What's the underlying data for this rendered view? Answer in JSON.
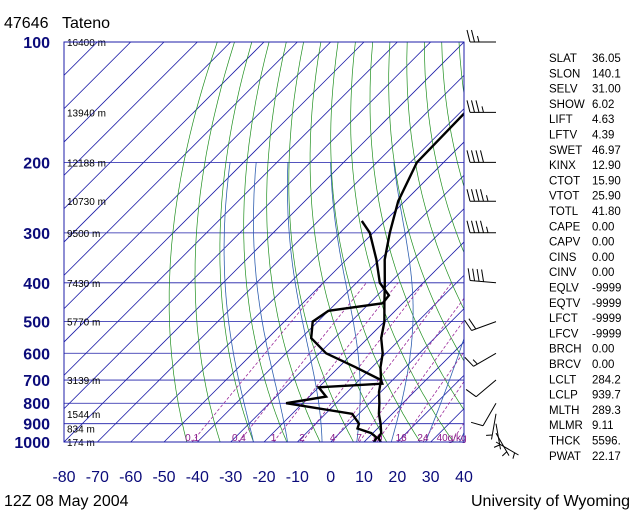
{
  "header": {
    "station_id": "47646",
    "station_name": "Tateno"
  },
  "footer": {
    "time": "12Z 08 May 2004",
    "source": "University of Wyoming"
  },
  "chart_data": {
    "type": "skew-t",
    "y_axis": {
      "scale": "log",
      "ticks": [
        100,
        200,
        300,
        400,
        500,
        600,
        700,
        800,
        900,
        1000
      ],
      "ylim": [
        1000,
        100
      ]
    },
    "x_axis": {
      "ticks": [
        -80,
        -70,
        -60,
        -50,
        -40,
        -30,
        -20,
        -10,
        0,
        10,
        20,
        30,
        40
      ],
      "xlim": [
        -80,
        40
      ]
    },
    "heights": [
      {
        "p": 100,
        "label": "16400 m"
      },
      {
        "p": 150,
        "label": "13940 m"
      },
      {
        "p": 200,
        "label": "12188 m"
      },
      {
        "p": 250,
        "label": "10730 m"
      },
      {
        "p": 300,
        "label": "9500 m"
      },
      {
        "p": 400,
        "label": "7430 m"
      },
      {
        "p": 500,
        "label": "5770 m"
      },
      {
        "p": 700,
        "label": "3139 m"
      },
      {
        "p": 850,
        "label": "1544 m"
      },
      {
        "p": 925,
        "label": "834 m"
      },
      {
        "p": 1000,
        "label": "174 m"
      }
    ],
    "mixing_ratio_labels": [
      "0.1",
      "0.4",
      "1",
      "2",
      "4",
      "7",
      "10",
      "16",
      "24",
      "40g/kg"
    ],
    "mixing_ratio_values": [
      0.1,
      0.4,
      1,
      2,
      4,
      7,
      10,
      16,
      24,
      40
    ],
    "temperature": [
      [
        1000,
        15.0
      ],
      [
        975,
        13.0
      ],
      [
        950,
        12.5
      ],
      [
        925,
        11.0
      ],
      [
        900,
        9.5
      ],
      [
        850,
        6.0
      ],
      [
        800,
        3.0
      ],
      [
        750,
        -0.5
      ],
      [
        700,
        -3.5
      ],
      [
        650,
        -7.5
      ],
      [
        600,
        -11.0
      ],
      [
        550,
        -16.0
      ],
      [
        500,
        -20.0
      ],
      [
        450,
        -25.5
      ],
      [
        400,
        -31.5
      ],
      [
        350,
        -38.5
      ],
      [
        300,
        -45.0
      ],
      [
        250,
        -52.0
      ],
      [
        200,
        -58.0
      ],
      [
        150,
        -58.5
      ],
      [
        100,
        -59.0
      ]
    ],
    "dewpoint": [
      [
        1000,
        13.0
      ],
      [
        975,
        12.5
      ],
      [
        950,
        9.5
      ],
      [
        925,
        4.0
      ],
      [
        900,
        3.0
      ],
      [
        850,
        -2.0
      ],
      [
        800,
        -25.0
      ],
      [
        770,
        -15.0
      ],
      [
        730,
        -20.0
      ],
      [
        715,
        -2.0
      ],
      [
        700,
        -3.5
      ],
      [
        650,
        -15.0
      ],
      [
        600,
        -28.0
      ],
      [
        550,
        -37.0
      ],
      [
        500,
        -41.5
      ],
      [
        470,
        -40.0
      ],
      [
        450,
        -26.0
      ],
      [
        430,
        -26.5
      ],
      [
        400,
        -33.0
      ],
      [
        350,
        -41.0
      ],
      [
        300,
        -51.0
      ],
      [
        280,
        -57.0
      ]
    ],
    "winds": [
      {
        "p": 100,
        "dir": 270,
        "kt": 25
      },
      {
        "p": 150,
        "dir": 270,
        "kt": 35
      },
      {
        "p": 200,
        "dir": 270,
        "kt": 40
      },
      {
        "p": 250,
        "dir": 270,
        "kt": 45
      },
      {
        "p": 300,
        "dir": 270,
        "kt": 45
      },
      {
        "p": 400,
        "dir": 275,
        "kt": 40
      },
      {
        "p": 500,
        "dir": 250,
        "kt": 20
      },
      {
        "p": 600,
        "dir": 240,
        "kt": 15
      },
      {
        "p": 700,
        "dir": 230,
        "kt": 10
      },
      {
        "p": 800,
        "dir": 210,
        "kt": 10
      },
      {
        "p": 850,
        "dir": 190,
        "kt": 5
      },
      {
        "p": 900,
        "dir": 170,
        "kt": 5
      },
      {
        "p": 950,
        "dir": 150,
        "kt": 5
      },
      {
        "p": 1000,
        "dir": 120,
        "kt": 5
      }
    ]
  },
  "indices": [
    {
      "name": "SLAT",
      "value": "36.05"
    },
    {
      "name": "SLON",
      "value": "140.1"
    },
    {
      "name": "SELV",
      "value": "31.00"
    },
    {
      "name": "SHOW",
      "value": "6.02"
    },
    {
      "name": "LIFT",
      "value": "4.63"
    },
    {
      "name": "LFTV",
      "value": "4.39"
    },
    {
      "name": "SWET",
      "value": "46.97"
    },
    {
      "name": "KINX",
      "value": "12.90"
    },
    {
      "name": "CTOT",
      "value": "15.90"
    },
    {
      "name": "VTOT",
      "value": "25.90"
    },
    {
      "name": "TOTL",
      "value": "41.80"
    },
    {
      "name": "CAPE",
      "value": "0.00"
    },
    {
      "name": "CAPV",
      "value": "0.00"
    },
    {
      "name": "CINS",
      "value": "0.00"
    },
    {
      "name": "CINV",
      "value": "0.00"
    },
    {
      "name": "EQLV",
      "value": "-9999"
    },
    {
      "name": "EQTV",
      "value": "-9999"
    },
    {
      "name": "LFCT",
      "value": "-9999"
    },
    {
      "name": "LFCV",
      "value": "-9999"
    },
    {
      "name": "BRCH",
      "value": "0.00"
    },
    {
      "name": "BRCV",
      "value": "0.00"
    },
    {
      "name": "LCLT",
      "value": "284.2"
    },
    {
      "name": "LCLP",
      "value": "939.7"
    },
    {
      "name": "MLTH",
      "value": "289.3"
    },
    {
      "name": "MLMR",
      "value": "9.11"
    },
    {
      "name": "THCK",
      "value": "5596."
    },
    {
      "name": "PWAT",
      "value": "22.17"
    }
  ],
  "colors": {
    "isobars": "#1c1ca8",
    "isotherms": "#1c1ca8",
    "dry_adiabats": "#1f8f1f",
    "moist_adiabats": "#2f5fb0",
    "mixing_ratio": "#9a2a9a",
    "sounding": "#000000",
    "axis_labels": "#0b0b7a"
  }
}
